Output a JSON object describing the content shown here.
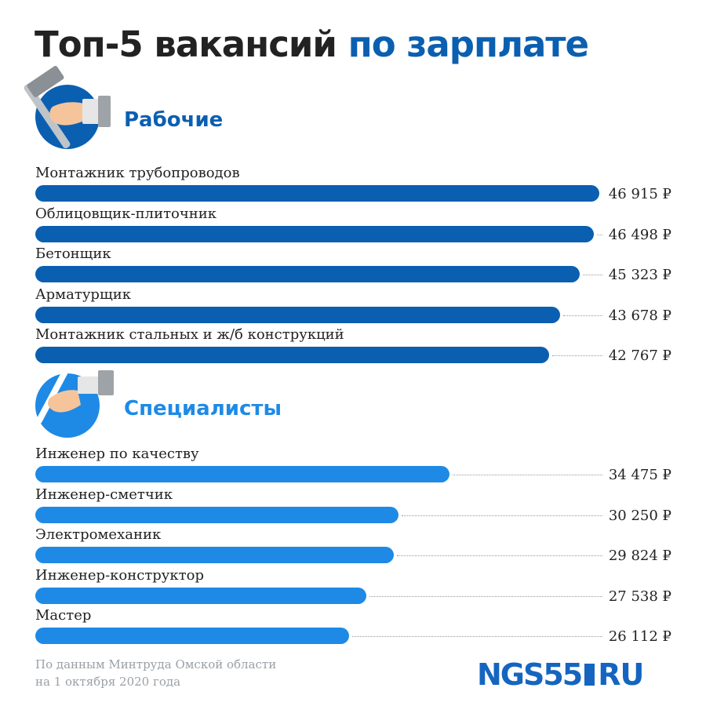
{
  "title_main": "Топ-5 вакансий",
  "title_accent": "по зарплате",
  "colors": {
    "workers": "#0b5fb0",
    "specialists": "#1e8ae6",
    "text": "#222222",
    "muted": "#9aa0a6"
  },
  "icons": {
    "workers": "hand-hammer-icon",
    "specialists": "hand-pen-icon"
  },
  "chart_data": {
    "type": "bar",
    "orientation": "horizontal",
    "xlim": [
      0,
      47000
    ],
    "value_suffix": "₽",
    "groups": [
      {
        "name": "Рабочие",
        "categories": [
          "Монтажник трубопроводов",
          "Облицовщик-плиточник",
          "Бетонщик",
          "Арматурщик",
          "Монтажник стальных и ж/б конструкций"
        ],
        "values": [
          46915,
          46498,
          45323,
          43678,
          42767
        ],
        "labels": [
          "46 915 ₽",
          "46 498 ₽",
          "45 323 ₽",
          "43 678 ₽",
          "42 767 ₽"
        ]
      },
      {
        "name": "Специалисты",
        "categories": [
          "Инженер по качеству",
          "Инженер-сметчик",
          "Электромеханик",
          "Инженер-конструктор",
          "Мастер"
        ],
        "values": [
          34475,
          30250,
          29824,
          27538,
          26112
        ],
        "labels": [
          "34 475 ₽",
          "30 250 ₽",
          "29 824 ₽",
          "27 538 ₽",
          "26 112 ₽"
        ]
      }
    ]
  },
  "source": {
    "line1": "По данным Минтруда Омской области",
    "line2": "на 1 октября 2020 года"
  },
  "logo": {
    "main": "NGS55",
    "suffix": "RU"
  }
}
